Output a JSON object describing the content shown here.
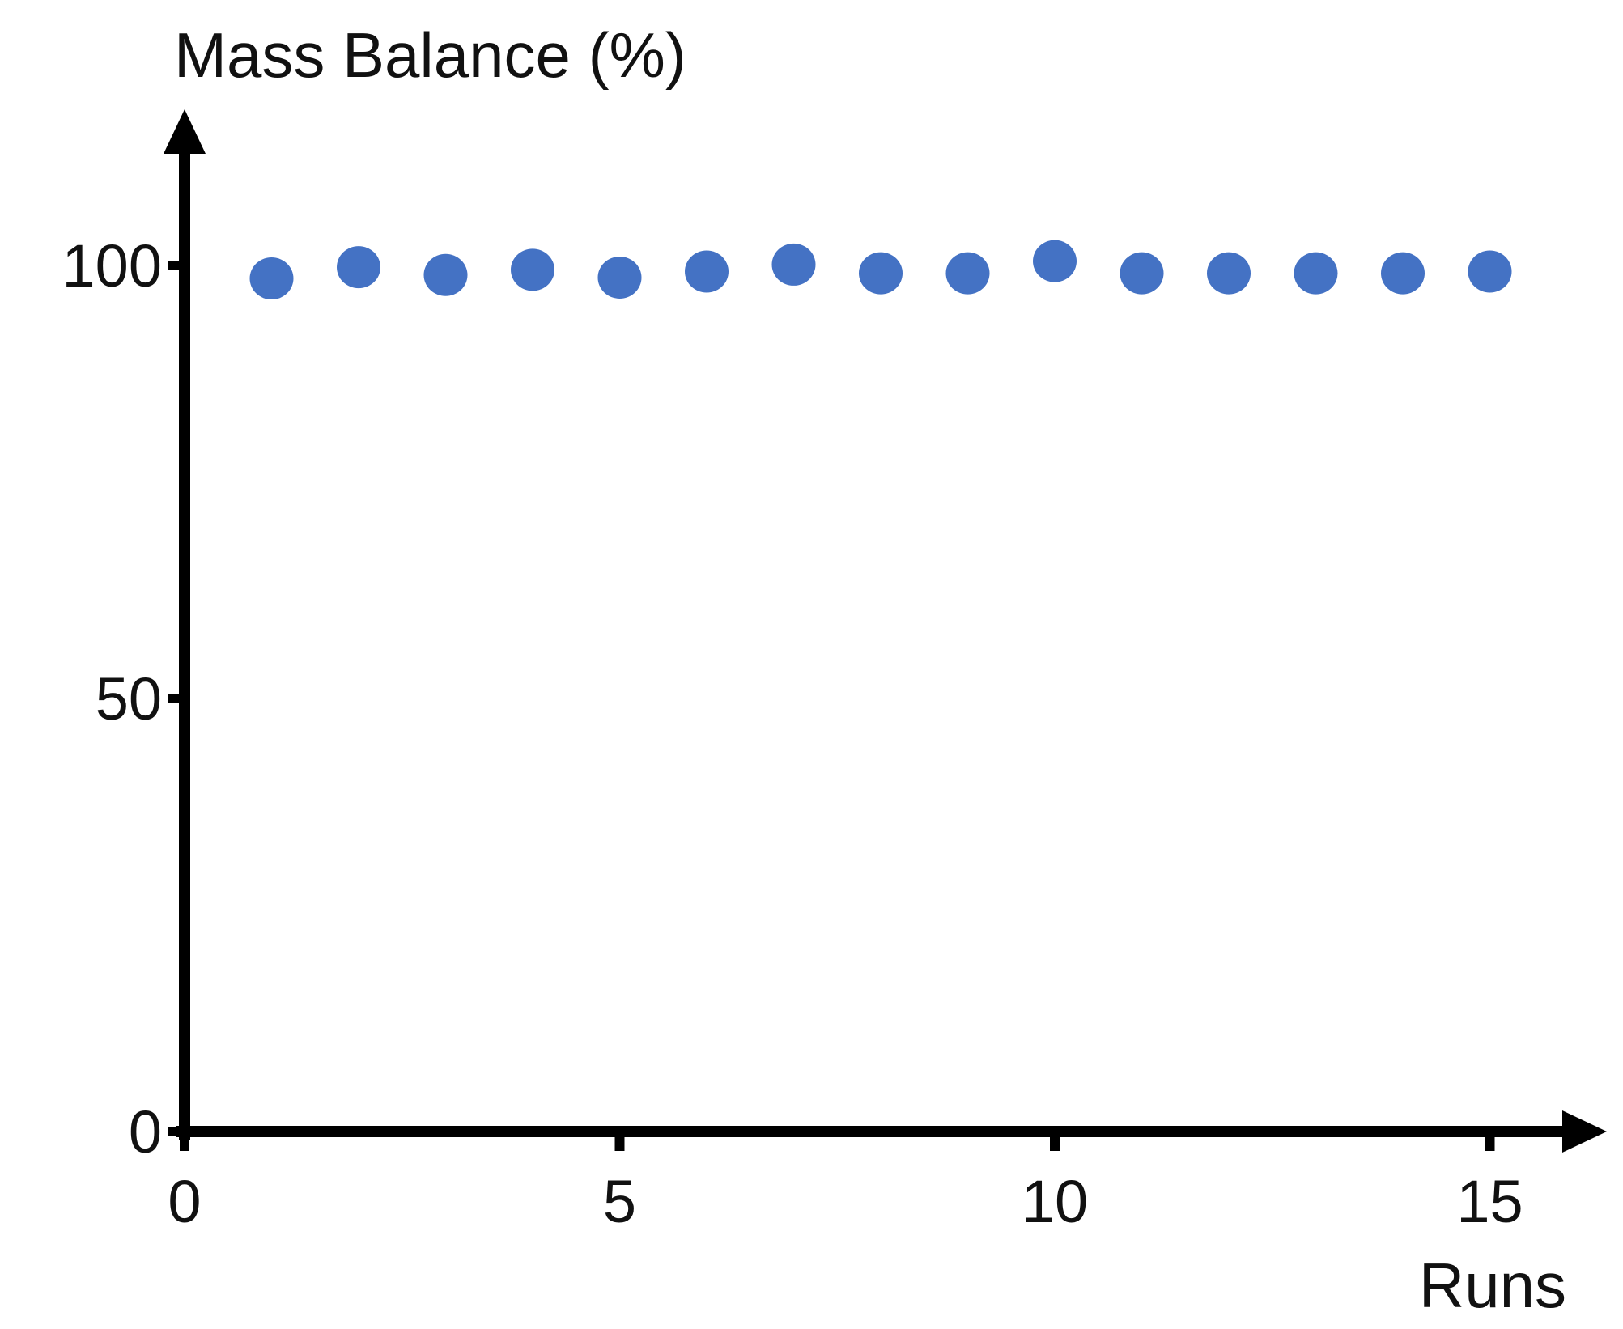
{
  "chart_data": {
    "type": "scatter",
    "title": "",
    "xlabel": "Runs",
    "ylabel": "Mass Balance (%)",
    "xlim": [
      0,
      16.4
    ],
    "ylim": [
      0,
      125
    ],
    "x_ticks": [
      0,
      5,
      10,
      15
    ],
    "y_ticks": [
      0,
      50,
      100
    ],
    "x_tick_labels": [
      "0",
      "5",
      "10",
      "15"
    ],
    "y_tick_labels": [
      "0",
      "50",
      "100"
    ],
    "grid": false,
    "legend": "none",
    "colors": {
      "marker": "#4472C4",
      "axis": "#000000",
      "text": "#111111"
    },
    "series": [
      {
        "x": [
          1,
          2,
          3,
          4,
          5,
          6,
          7,
          8,
          9,
          10,
          11,
          12,
          13,
          14,
          15
        ],
        "y": [
          98.5,
          99.8,
          98.9,
          99.5,
          98.6,
          99.3,
          100.1,
          99.1,
          99.1,
          100.5,
          99.1,
          99.1,
          99.1,
          99.1,
          99.3
        ]
      }
    ]
  }
}
